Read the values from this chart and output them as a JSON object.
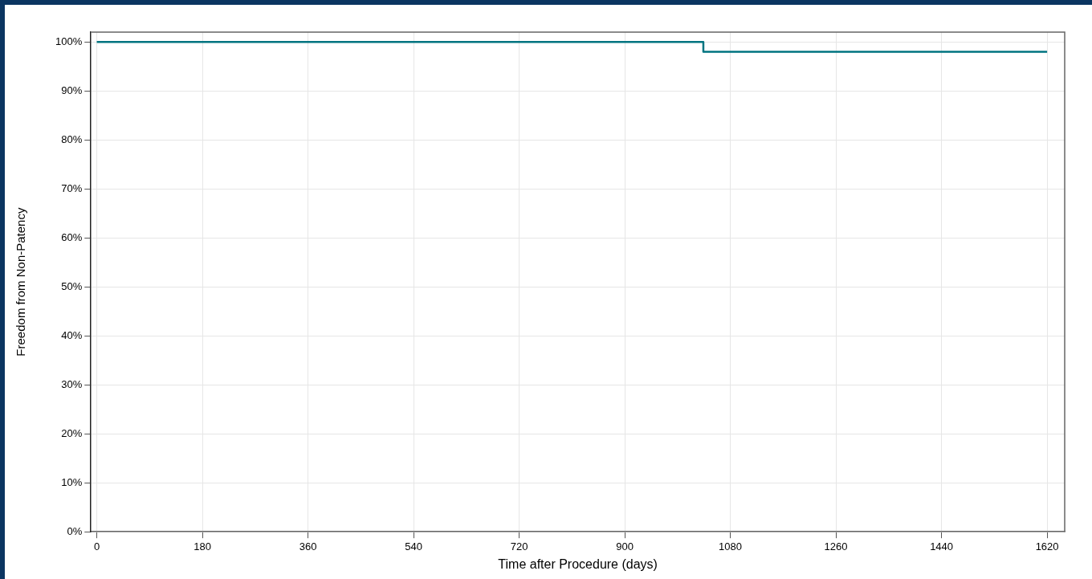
{
  "chart_data": {
    "type": "step",
    "xlabel": "Time after Procedure (days)",
    "ylabel": "Freedom from Non-Patency",
    "series": [
      {
        "color": "#007480",
        "x": [
          0,
          1034,
          1620
        ],
        "values": [
          100,
          98,
          98
        ]
      }
    ],
    "xlim": [
      -10,
      1650
    ],
    "xticks": [
      0,
      180,
      360,
      540,
      720,
      900,
      1080,
      1260,
      1440,
      1620
    ],
    "ylim": [
      0,
      102
    ],
    "yticks": [
      {
        "value": 0,
        "label": "0%"
      },
      {
        "value": 10,
        "label": "10%"
      },
      {
        "value": 20,
        "label": "20%"
      },
      {
        "value": 30,
        "label": "30%"
      },
      {
        "value": 40,
        "label": "40%"
      },
      {
        "value": 50,
        "label": "50%"
      },
      {
        "value": 60,
        "label": "60%"
      },
      {
        "value": 70,
        "label": "70%"
      },
      {
        "value": 80,
        "label": "80%"
      },
      {
        "value": 90,
        "label": "90%"
      },
      {
        "value": 100,
        "label": "100%"
      }
    ],
    "grid": true,
    "legend": false,
    "marker": "none",
    "line_style": "solid"
  }
}
